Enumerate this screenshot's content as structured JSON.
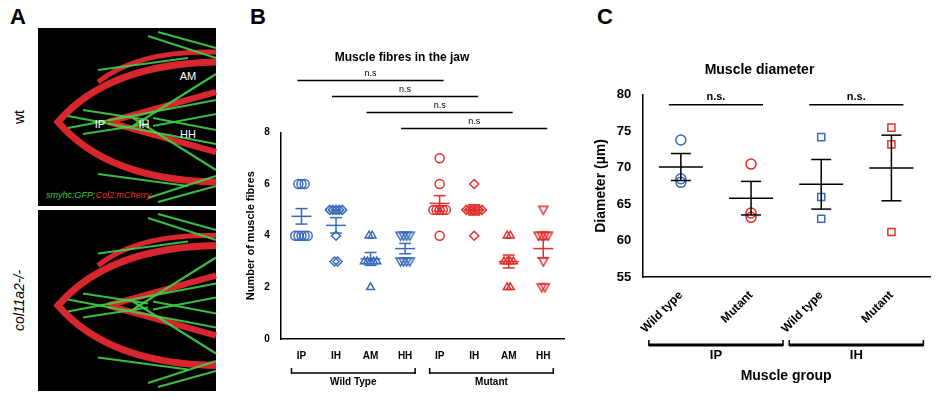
{
  "figure_a": {
    "panel_label": "A",
    "images": [
      {
        "label": "wt",
        "annotations": [
          "AM",
          "IP",
          "IH",
          "HH"
        ],
        "caption": [
          {
            "text": "smyhc:GFP;",
            "color": "#3cc83c"
          },
          {
            "text": "Col2:mCherry",
            "color": "#e8322a"
          }
        ]
      },
      {
        "label": "col11a2-/-"
      }
    ]
  },
  "chart_data": [
    {
      "panel_label": "B",
      "type": "scatter",
      "title": "Muscle fibres in the jaw",
      "y_label": "Number of muscle fibres",
      "ylim": [
        0,
        8
      ],
      "yticks": [
        0,
        2,
        4,
        6,
        8
      ],
      "grid": false,
      "legend": "none",
      "series": [
        {
          "name": "IP",
          "group": "Wild Type",
          "color": "#3a6bb7",
          "marker": "circle",
          "values": [
            6,
            6,
            6,
            4,
            4,
            4,
            4,
            4
          ],
          "mean": 4.75,
          "error": 0.3
        },
        {
          "name": "IH",
          "group": "Wild Type",
          "color": "#3a6bb7",
          "marker": "diamond",
          "values": [
            5,
            5,
            5,
            5,
            5,
            4,
            3,
            3
          ],
          "mean": 4.4,
          "error": 0.3
        },
        {
          "name": "AM",
          "group": "Wild Type",
          "color": "#3a6bb7",
          "marker": "triangle",
          "values": [
            4,
            4,
            3,
            3,
            3,
            3,
            3,
            2
          ],
          "mean": 3.1,
          "error": 0.25
        },
        {
          "name": "HH",
          "group": "Wild Type",
          "color": "#3a6bb7",
          "marker": "triangle_down",
          "values": [
            4,
            4,
            4,
            4,
            3,
            3,
            3,
            3
          ],
          "mean": 3.5,
          "error": 0.2
        },
        {
          "name": "IP",
          "group": "Mutant",
          "color": "#e0312f",
          "marker": "circle",
          "values": [
            7,
            6,
            5,
            5,
            5,
            5,
            5,
            4
          ],
          "mean": 5.25,
          "error": 0.3
        },
        {
          "name": "IH",
          "group": "Mutant",
          "color": "#e0312f",
          "marker": "diamond",
          "values": [
            6,
            5,
            5,
            5,
            5,
            5,
            5,
            4
          ],
          "mean": 5.0,
          "error": 0.2
        },
        {
          "name": "AM",
          "group": "Mutant",
          "color": "#e0312f",
          "marker": "triangle",
          "values": [
            4,
            4,
            3,
            3,
            3,
            3,
            2,
            2
          ],
          "mean": 3.0,
          "error": 0.25
        },
        {
          "name": "HH",
          "group": "Mutant",
          "color": "#e0312f",
          "marker": "triangle_down",
          "values": [
            5,
            4,
            4,
            4,
            4,
            3,
            2,
            2
          ],
          "mean": 3.5,
          "error": 0.35
        }
      ],
      "comparisons": [
        {
          "between": [
            0,
            4
          ],
          "label": "n.s"
        },
        {
          "between": [
            1,
            5
          ],
          "label": "n.s"
        },
        {
          "between": [
            2,
            6
          ],
          "label": "n.s"
        },
        {
          "between": [
            3,
            7
          ],
          "label": "n.s"
        }
      ]
    },
    {
      "panel_label": "C",
      "type": "scatter",
      "title": "Muscle diameter",
      "y_label": "Diameter (µm)",
      "x_label": "Muscle group",
      "ylim": [
        55,
        80
      ],
      "yticks": [
        55,
        60,
        65,
        70,
        75,
        80
      ],
      "grid": false,
      "legend": "none",
      "series": [
        {
          "name": "Wild type",
          "group": "IP",
          "color": "#3a6bb7",
          "marker": "circle",
          "values": [
            73.8,
            68.5,
            68.0
          ],
          "mean": 70.1,
          "error": 1.85
        },
        {
          "name": "Mutant",
          "group": "IP",
          "color": "#e0312f",
          "marker": "circle",
          "values": [
            70.5,
            63.8,
            63.2
          ],
          "mean": 65.83,
          "error": 2.3
        },
        {
          "name": "Wild type",
          "group": "IH",
          "color": "#3a6bb7",
          "marker": "square",
          "values": [
            74.2,
            66.0,
            63.0
          ],
          "mean": 67.73,
          "error": 3.4
        },
        {
          "name": "Mutant",
          "group": "IH",
          "color": "#e0312f",
          "marker": "square",
          "values": [
            75.5,
            73.2,
            61.2
          ],
          "mean": 69.97,
          "error": 4.5
        }
      ],
      "comparisons": [
        {
          "between": [
            0,
            1
          ],
          "label": "n.s."
        },
        {
          "between": [
            2,
            3
          ],
          "label": "n.s."
        }
      ]
    }
  ]
}
